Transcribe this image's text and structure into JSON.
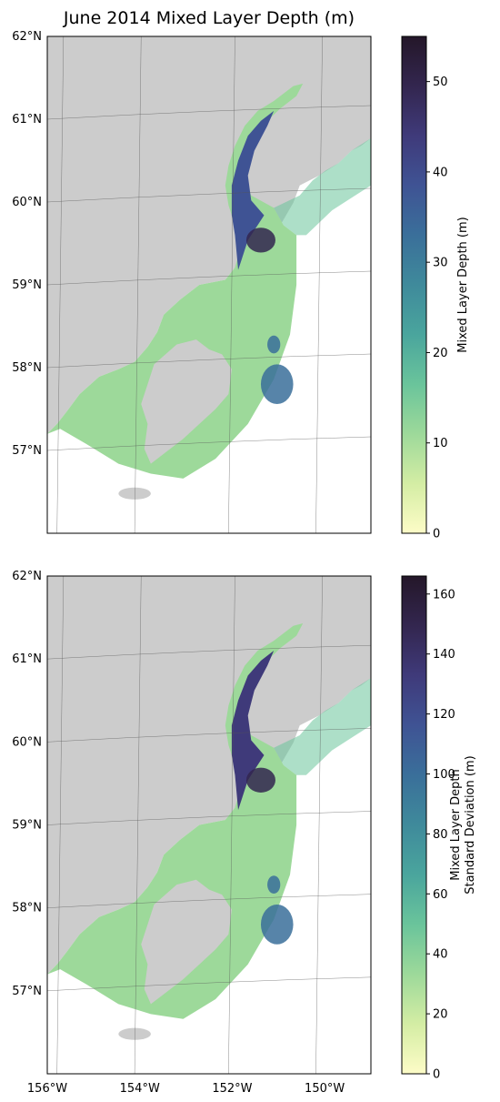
{
  "title": "June 2014 Mixed Layer Depth (m)",
  "colors": {
    "land": "#cccccc",
    "ocean_background": "#ffffff",
    "frame": "#000000",
    "gridline": "#555555",
    "colormap_deep": [
      "#fdfcc7",
      "#d4eda4",
      "#9dd99a",
      "#6ac49b",
      "#4aa59d",
      "#3f8a9b",
      "#3a6f9a",
      "#3f5394",
      "#3f3a7a",
      "#33264f",
      "#241729"
    ]
  },
  "chart_data": [
    {
      "type": "heatmap",
      "title": "June 2014 Mixed Layer Depth (m)",
      "xlim": [
        -156,
        -149
      ],
      "ylim": [
        56,
        62
      ],
      "xticks": [],
      "xtick_labels": [],
      "yticks": [
        57,
        58,
        59,
        60,
        61,
        62
      ],
      "ytick_labels": [
        "57°N",
        "58°N",
        "59°N",
        "60°N",
        "61°N",
        "62°N"
      ],
      "grid": true,
      "colorbar": {
        "label": "Mixed Layer Depth (m)",
        "range": [
          0,
          55
        ],
        "ticks": [
          0,
          10,
          20,
          30,
          40,
          50
        ],
        "tick_labels": [
          "0",
          "10",
          "20",
          "30",
          "40",
          "50"
        ]
      }
    },
    {
      "type": "heatmap",
      "title": "",
      "xlim": [
        -156,
        -149
      ],
      "ylim": [
        56,
        62
      ],
      "xticks": [
        -156,
        -154,
        -152,
        -150
      ],
      "xtick_labels": [
        "156°W",
        "154°W",
        "152°W",
        "150°W"
      ],
      "yticks": [
        57,
        58,
        59,
        60,
        61,
        62
      ],
      "ytick_labels": [
        "57°N",
        "58°N",
        "59°N",
        "60°N",
        "61°N",
        "62°N"
      ],
      "grid": true,
      "colorbar": {
        "label": "Mixed Layer Depth\nStandard Deviation (m)",
        "label_lines": [
          "Mixed Layer Depth",
          "Standard Deviation (m)"
        ],
        "range": [
          0,
          166
        ],
        "ticks": [
          0,
          20,
          40,
          60,
          80,
          100,
          120,
          140,
          160
        ],
        "tick_labels": [
          "0",
          "20",
          "40",
          "60",
          "80",
          "100",
          "120",
          "140",
          "160"
        ]
      }
    }
  ]
}
